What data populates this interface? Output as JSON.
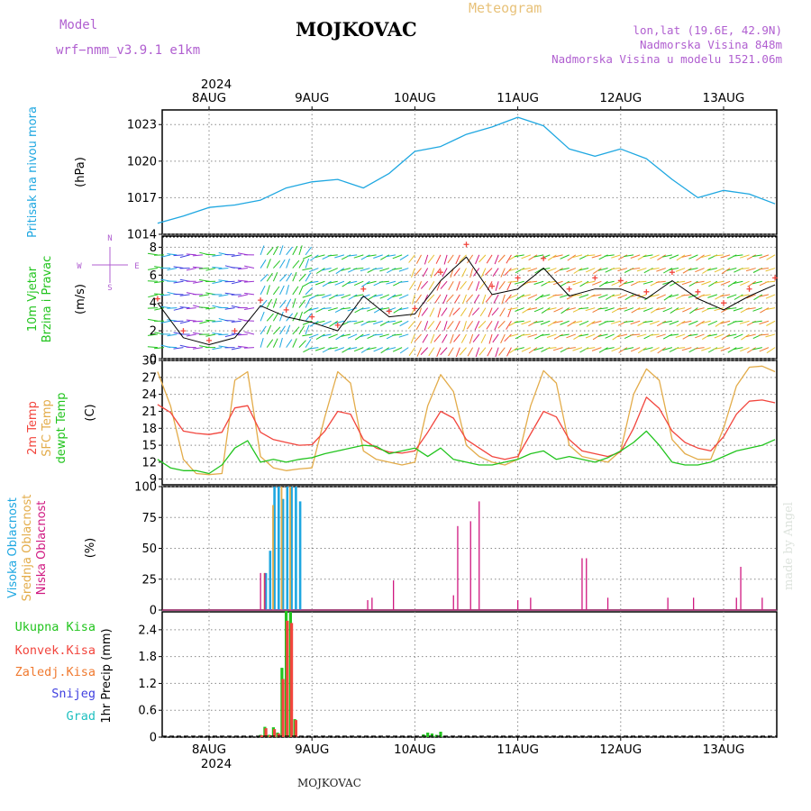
{
  "header": {
    "title": "MOJKOVAC",
    "meteogram_label": "Meteogram",
    "model_label": "Model",
    "model_name": "wrf−nmm_v3.9.1  e1km",
    "lonlat": "lon,lat (19.6E, 42.9N)",
    "elevation": "Nadmorska Visina 848m",
    "model_elevation": "Nadmorska Visina u modelu 1521.06m",
    "credit": "made by Angel",
    "footer": "MOJKOVAC"
  },
  "colors": {
    "pressure": "#1ea7e1",
    "temp2m": "#f2453d",
    "sfc_temp": "#e3ac4a",
    "dewpt": "#22c41e",
    "high_cloud": "#1ea7e1",
    "mid_cloud": "#e3ac4a",
    "low_cloud": "#d01880",
    "total_rain": "#22c41e",
    "conv_rain": "#f2453d",
    "freezing_rain": "#f07a30",
    "snow": "#4040e0",
    "hail": "#20c0c0",
    "wind_speed_line": "#000000",
    "wind_gust_marker": "#f2453d",
    "compass": "#b05fd0"
  },
  "chart_data": [
    {
      "type": "line",
      "panel": "pressure",
      "ylabel_name": "Pritisak na nivou mora",
      "unit": "(hPa)",
      "yticks": [
        1014,
        1017,
        1020,
        1023
      ],
      "ylim": [
        1014,
        1024.2
      ],
      "x_hours": [
        0,
        6,
        12,
        18,
        24,
        30,
        36,
        42,
        48,
        54,
        60,
        66,
        72,
        78,
        84,
        90,
        96,
        102,
        108,
        114,
        120,
        126,
        132,
        138,
        144
      ],
      "series": [
        {
          "values": [
            1014.9,
            1015.5,
            1016.2,
            1016.4,
            1016.8,
            1017.8,
            1018.3,
            1018.5,
            1017.8,
            1019.0,
            1020.8,
            1021.2,
            1022.2,
            1022.8,
            1023.6,
            1022.9,
            1021.0,
            1020.4,
            1021.0,
            1020.2,
            1018.5,
            1017.0,
            1017.6,
            1017.3,
            1016.5
          ]
        }
      ],
      "grid": true
    },
    {
      "type": "line",
      "panel": "wind",
      "ylabel_name": "10m Vjetar Brzina i Pravac",
      "unit": "(m/s)",
      "compass": {
        "north": "N",
        "south": "S",
        "east": "E",
        "west": "W"
      },
      "yticks": [
        0,
        2,
        4,
        6,
        8
      ],
      "ylim": [
        0,
        8.8
      ],
      "x_hours": [
        0,
        6,
        12,
        18,
        24,
        30,
        36,
        42,
        48,
        54,
        60,
        66,
        72,
        78,
        84,
        90,
        96,
        102,
        108,
        114,
        120,
        126,
        132,
        138,
        144
      ],
      "series": [
        {
          "values": [
            4.0,
            1.5,
            1.0,
            1.5,
            3.8,
            3.0,
            2.6,
            2.0,
            4.5,
            3.0,
            3.2,
            5.6,
            7.3,
            4.6,
            5.0,
            6.5,
            4.5,
            5.0,
            5.0,
            4.3,
            5.6,
            4.3,
            3.5,
            4.5,
            5.3
          ]
        },
        {
          "values": [
            4.3,
            2.0,
            1.3,
            2.0,
            4.2,
            3.5,
            3.0,
            2.4,
            5.0,
            3.4,
            3.6,
            6.2,
            8.2,
            5.2,
            5.8,
            7.2,
            5.0,
            5.8,
            5.6,
            4.8,
            6.2,
            4.8,
            4.0,
            5.0,
            5.8
          ]
        }
      ],
      "grid": true
    },
    {
      "type": "line",
      "panel": "temperature",
      "ylabel_names": [
        "2m Temp",
        "SFC Temp",
        "dewpt Temp"
      ],
      "unit": "(C)",
      "yticks": [
        9,
        12,
        15,
        18,
        21,
        24,
        27,
        30
      ],
      "ylim": [
        8,
        30
      ],
      "x_hours": [
        0,
        3,
        6,
        9,
        12,
        15,
        18,
        21,
        24,
        27,
        30,
        33,
        36,
        39,
        42,
        45,
        48,
        51,
        54,
        57,
        60,
        63,
        66,
        69,
        72,
        75,
        78,
        81,
        84,
        87,
        90,
        93,
        96,
        99,
        102,
        105,
        108,
        111,
        114,
        117,
        120,
        123,
        126,
        129,
        132,
        135,
        138,
        141,
        144
      ],
      "series": [
        {
          "values": [
            22.2,
            20.8,
            17.5,
            17.1,
            16.9,
            17.3,
            21.6,
            22.0,
            17.3,
            16.0,
            15.5,
            15.0,
            15.1,
            17.5,
            21.0,
            20.5,
            16.0,
            14.5,
            13.8,
            13.6,
            14.0,
            17.3,
            21.0,
            19.8,
            16.0,
            14.5,
            13.0,
            12.5,
            13.0,
            17.0,
            21.0,
            20.0,
            16.0,
            14.0,
            13.5,
            13.0,
            13.8,
            18.0,
            23.5,
            21.5,
            17.5,
            15.5,
            14.5,
            14.0,
            16.5,
            20.5,
            22.8,
            23.0,
            22.5
          ]
        },
        {
          "values": [
            28.0,
            22.0,
            12.5,
            10.0,
            9.8,
            10.0,
            26.5,
            28.0,
            13.0,
            11.0,
            10.5,
            10.8,
            11.0,
            20.0,
            28.0,
            26.0,
            14.0,
            12.5,
            12.0,
            11.5,
            12.0,
            22.0,
            27.5,
            24.5,
            15.0,
            13.0,
            12.0,
            11.5,
            12.5,
            22.0,
            28.2,
            26.0,
            15.0,
            13.0,
            12.5,
            12.0,
            14.0,
            24.0,
            28.5,
            26.5,
            16.0,
            13.5,
            12.5,
            12.5,
            18.0,
            25.5,
            28.8,
            29.0,
            28.0
          ]
        },
        {
          "values": [
            12.5,
            11.0,
            10.5,
            10.5,
            10.0,
            11.5,
            14.5,
            15.8,
            12.0,
            12.5,
            12.0,
            12.5,
            12.8,
            13.5,
            14.0,
            14.5,
            15.0,
            14.8,
            13.5,
            14.0,
            14.5,
            13.0,
            14.5,
            12.5,
            12.0,
            11.5,
            11.5,
            12.0,
            12.5,
            13.5,
            14.0,
            12.5,
            13.0,
            12.5,
            12.0,
            12.8,
            14.0,
            15.5,
            17.5,
            15.0,
            12.0,
            11.5,
            11.5,
            12.0,
            13.0,
            14.0,
            14.5,
            15.0,
            16.0
          ]
        }
      ],
      "grid": true
    },
    {
      "type": "bar",
      "panel": "clouds",
      "ylabel_names": [
        "Visoka Oblacnost",
        "Srednja Oblacnost",
        "Niska Oblacnost"
      ],
      "unit": "(%)",
      "yticks": [
        0,
        25,
        50,
        75,
        100
      ],
      "ylim": [
        0,
        100
      ],
      "series": [
        {
          "x_hours": [
            25,
            26,
            27,
            28,
            29,
            30,
            31,
            32,
            33
          ],
          "values": [
            30,
            48,
            100,
            100,
            90,
            100,
            100,
            100,
            88
          ]
        },
        {
          "x_hours": [
            25,
            27,
            29,
            31
          ],
          "values": [
            30,
            85,
            100,
            100
          ]
        },
        {
          "x_hours": [
            23,
            24,
            25,
            49,
            50,
            55,
            69,
            70,
            72,
            73,
            75,
            80,
            84,
            85,
            87,
            99,
            100,
            104,
            105,
            112,
            119,
            120,
            121,
            125,
            134,
            135,
            136,
            141,
            142
          ],
          "values": [
            5,
            30,
            30,
            8,
            10,
            24,
            12,
            68,
            5,
            72,
            88,
            5,
            8,
            5,
            10,
            42,
            42,
            5,
            10,
            5,
            10,
            5,
            5,
            10,
            5,
            10,
            35,
            10,
            3
          ]
        }
      ],
      "grid": true
    },
    {
      "type": "bar",
      "panel": "precipitation",
      "ylabel_names": [
        "Ukupna Kisa",
        "Konvek.Kisa",
        "Zaledj.Kisa",
        "Snijeg",
        "Grad"
      ],
      "unit": "1hr Precip (mm)",
      "yticks": [
        0,
        0.6,
        1.2,
        1.8,
        2.4
      ],
      "ylim": [
        0,
        2.8
      ],
      "series": [
        {
          "x_hours": [
            24,
            25,
            26,
            27,
            28,
            29,
            30,
            31,
            32,
            62,
            63,
            64,
            65,
            66
          ],
          "values": [
            0.05,
            0.23,
            0.05,
            0.22,
            0.1,
            1.55,
            2.82,
            2.8,
            0.4,
            0.06,
            0.1,
            0.08,
            0.05,
            0.12
          ]
        },
        {
          "x_hours": [
            24,
            25,
            26,
            27,
            28,
            29,
            30,
            31,
            32
          ],
          "values": [
            0.04,
            0.2,
            0.04,
            0.18,
            0.08,
            1.3,
            2.6,
            2.55,
            0.38
          ]
        },
        {
          "x_hours": [],
          "values": []
        },
        {
          "x_hours": [],
          "values": []
        },
        {
          "x_hours": [],
          "values": []
        }
      ],
      "grid": true
    }
  ],
  "time_axis": {
    "start_date": "2024-08-08",
    "labels": [
      "8AUG",
      "9AUG",
      "10AUG",
      "11AUG",
      "12AUG",
      "13AUG"
    ],
    "year": "2024"
  }
}
